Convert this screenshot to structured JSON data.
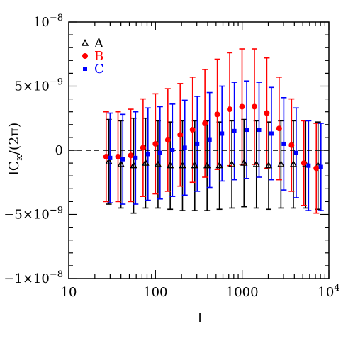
{
  "chart_data": {
    "type": "scatter",
    "xlabel": "l",
    "ylabel": "lC",
    "ylabel_sub": "κ",
    "ylabel_tail": "/(2π)",
    "xscale": "log",
    "xlim": [
      10,
      10000
    ],
    "ylim": [
      -1e-08,
      1e-08
    ],
    "x_tick_labels": [
      {
        "value": 10,
        "base": "10",
        "exp": ""
      },
      {
        "value": 100,
        "base": "100",
        "exp": ""
      },
      {
        "value": 1000,
        "base": "1000",
        "exp": ""
      },
      {
        "value": 10000,
        "base": "10",
        "exp": "4"
      }
    ],
    "y_tick_labels": [
      {
        "value": 1e-08,
        "base": "10",
        "exp": "−8"
      },
      {
        "value": 5e-09,
        "base": "5×10",
        "exp": "−9"
      },
      {
        "value": 0,
        "base": "0",
        "exp": ""
      },
      {
        "value": -5e-09,
        "base": "−5×10",
        "exp": "−9"
      },
      {
        "value": -1e-08,
        "base": "−1×10",
        "exp": "−8"
      }
    ],
    "zero_line": true,
    "legend_position": "top-left",
    "series": [
      {
        "name": "A",
        "color": "#000000",
        "marker": "triangle",
        "x": [
          29,
          40,
          56,
          77,
          107,
          148,
          205,
          284,
          394,
          547,
          760,
          1050,
          1460,
          2020,
          2800,
          3900,
          5400,
          7500
        ],
        "y": [
          -9e-10,
          -1.1e-09,
          -1.2e-09,
          -1e-09,
          -1.1e-09,
          -1.2e-09,
          -1.2e-09,
          -1.2e-09,
          -1.2e-09,
          -1.2e-09,
          -1.1e-09,
          -1e-09,
          -1.1e-09,
          -1.2e-09,
          -1.1e-09,
          -1.1e-09,
          -1.1e-09,
          -1.2e-09
        ],
        "err": [
          3.3e-09,
          3.4e-09,
          3.7e-09,
          3.5e-09,
          3.4e-09,
          3.4e-09,
          3.5e-09,
          3.5e-09,
          3.5e-09,
          3.4e-09,
          3.4e-09,
          3.4e-09,
          3.4e-09,
          3.4e-09,
          3.4e-09,
          3.4e-09,
          3.4e-09,
          3.4e-09
        ]
      },
      {
        "name": "B",
        "color": "#ff0000",
        "marker": "circle",
        "x": [
          27,
          37,
          52,
          72,
          100,
          139,
          193,
          268,
          372,
          517,
          718,
          997,
          1385,
          1923,
          2670,
          3710,
          5150,
          7160
        ],
        "y": [
          -5e-10,
          -5e-10,
          -4e-10,
          2e-10,
          5e-10,
          8e-10,
          1.2e-09,
          1.6e-09,
          2.1e-09,
          2.8e-09,
          3.2e-09,
          3.4e-09,
          3.4e-09,
          2.9e-09,
          1.7e-09,
          4e-10,
          -1e-09,
          -1.4e-09
        ],
        "err": [
          3.5e-09,
          3.5e-09,
          3.6e-09,
          3.8e-09,
          3.9e-09,
          4e-09,
          4e-09,
          4.1e-09,
          4.2e-09,
          4.3e-09,
          4.4e-09,
          4.5e-09,
          4.5e-09,
          4.3e-09,
          4e-09,
          3.6e-09,
          3.3e-09,
          3.5e-09
        ]
      },
      {
        "name": "C",
        "color": "#0000ff",
        "marker": "square",
        "x": [
          30,
          42,
          59,
          82,
          113,
          157,
          218,
          303,
          421,
          585,
          812,
          1128,
          1566,
          2175,
          3020,
          4200,
          5830,
          8100
        ],
        "y": [
          -6e-10,
          -7e-10,
          -6e-10,
          -3e-10,
          -2e-10,
          0.0,
          2e-10,
          5e-10,
          8e-10,
          1.3e-09,
          1.5e-09,
          1.6e-09,
          1.6e-09,
          1.3e-09,
          5e-10,
          -2e-10,
          -1.2e-09,
          -1.3e-09
        ],
        "err": [
          3.5e-09,
          3.5e-09,
          3.6e-09,
          3.6e-09,
          3.6e-09,
          3.6e-09,
          3.7e-09,
          3.7e-09,
          3.7e-09,
          3.7e-09,
          3.8e-09,
          3.8e-09,
          3.7e-09,
          3.6e-09,
          3.6e-09,
          3.5e-09,
          3.5e-09,
          3.4e-09
        ]
      }
    ]
  }
}
